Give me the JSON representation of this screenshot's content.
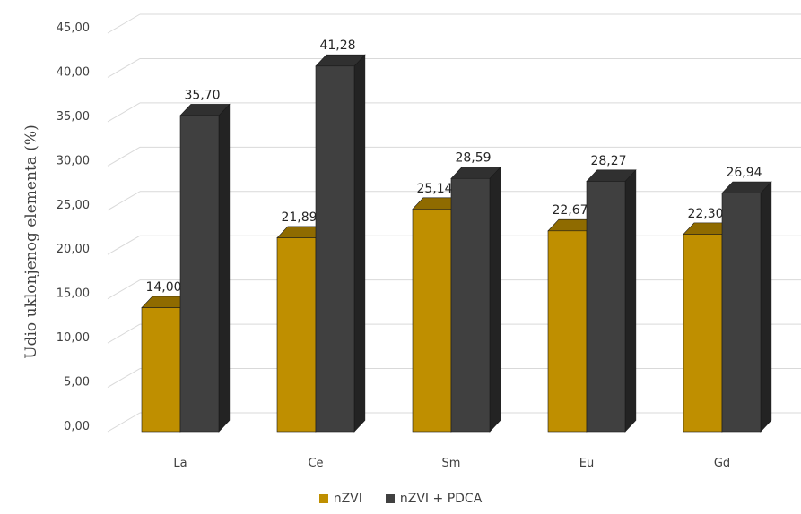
{
  "chart_data": {
    "type": "bar",
    "title": "",
    "xlabel": "",
    "ylabel": "Udio uklonjenog elementa (%)",
    "categories": [
      "La",
      "Ce",
      "Sm",
      "Eu",
      "Gd"
    ],
    "series": [
      {
        "name": "nZVI",
        "values": [
          14.0,
          21.89,
          25.14,
          22.67,
          22.3
        ],
        "labels": [
          "14,00",
          "21,89",
          "25,14",
          "22,67",
          "22,30"
        ],
        "color": "#bf8f00"
      },
      {
        "name": "nZVI + PDCA",
        "values": [
          35.7,
          41.28,
          28.59,
          28.27,
          26.94
        ],
        "labels": [
          "35,70",
          "41,28",
          "28,59",
          "28,27",
          "26,94"
        ],
        "color": "#404040"
      }
    ],
    "ylim": [
      0,
      45
    ],
    "yticks": [
      "0,00",
      "5,00",
      "10,00",
      "15,00",
      "20,00",
      "25,00",
      "30,00",
      "35,00",
      "40,00",
      "45,00"
    ],
    "grid": true,
    "legend_position": "bottom",
    "style": "3d-clustered-column"
  }
}
